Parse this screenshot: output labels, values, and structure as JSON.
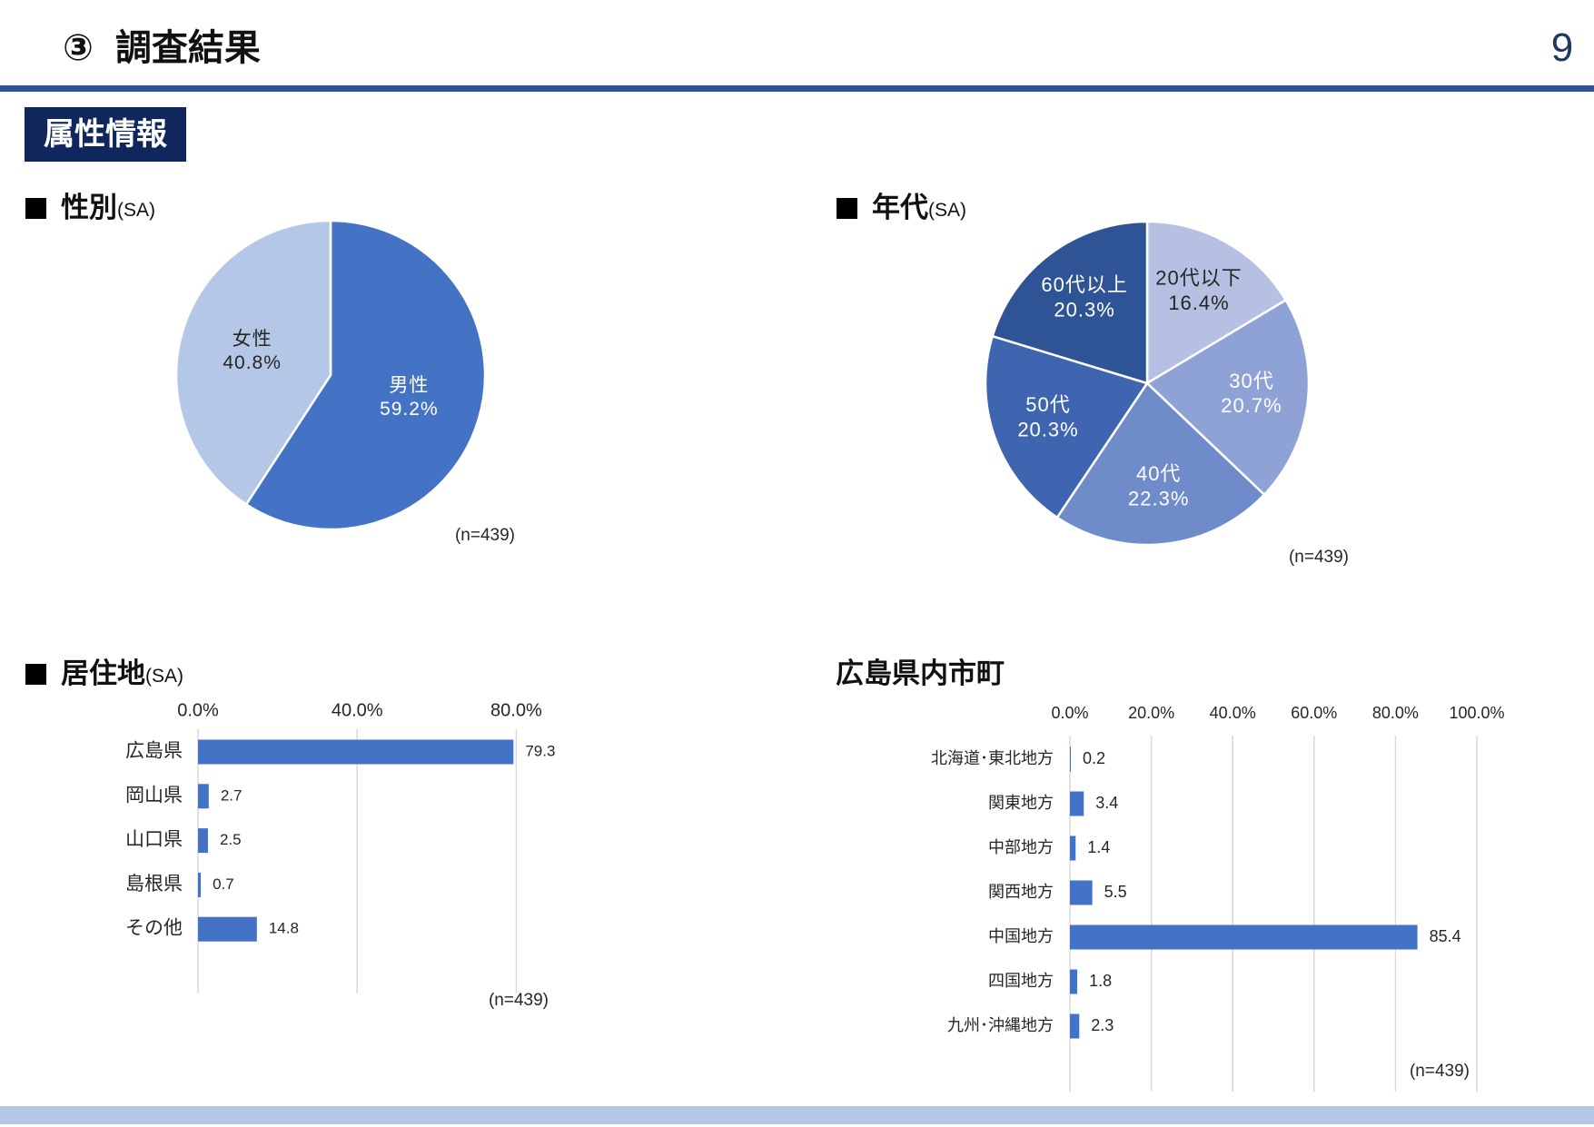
{
  "header": {
    "number": "③",
    "title": "調査結果",
    "page_number": "9"
  },
  "section_badge": "属性情報",
  "chart_data": [
    {
      "type": "pie",
      "title": "性別",
      "title_suffix": "(SA)",
      "note": "(n=439)",
      "slices": [
        {
          "label": "男性",
          "value": 59.2,
          "color": "#4472c4",
          "text_color": "#ffffff"
        },
        {
          "label": "女性",
          "value": 40.8,
          "color": "#b4c7e7",
          "text_color": "#262626"
        }
      ]
    },
    {
      "type": "pie",
      "title": "年代",
      "title_suffix": "(SA)",
      "note": "(n=439)",
      "slices": [
        {
          "label": "20代以下",
          "value": 16.4,
          "color": "#b6c0e3",
          "text_color": "#262626"
        },
        {
          "label": "30代",
          "value": 20.7,
          "color": "#8fa2d5",
          "text_color": "#ffffff"
        },
        {
          "label": "40代",
          "value": 22.3,
          "color": "#6f8bca",
          "text_color": "#ffffff"
        },
        {
          "label": "50代",
          "value": 20.3,
          "color": "#3f65b0",
          "text_color": "#ffffff"
        },
        {
          "label": "60代以上",
          "value": 20.3,
          "color": "#2f5496",
          "text_color": "#ffffff"
        }
      ]
    },
    {
      "type": "bar",
      "orientation": "horizontal",
      "title": "居住地",
      "title_suffix": "(SA)",
      "note": "(n=439)",
      "xlim": [
        0,
        80
      ],
      "x_ticks": [
        0,
        40,
        80
      ],
      "bar_color": "#4472c4",
      "grid": true,
      "categories": [
        "広島県",
        "岡山県",
        "山口県",
        "島根県",
        "その他"
      ],
      "values": [
        79.3,
        2.7,
        2.5,
        0.7,
        14.8
      ]
    },
    {
      "type": "bar",
      "orientation": "horizontal",
      "title": "広島県内市町",
      "note": "(n=439)",
      "xlim": [
        0,
        100
      ],
      "x_ticks": [
        0,
        20,
        40,
        60,
        80,
        100
      ],
      "bar_color": "#4472c4",
      "grid": true,
      "categories": [
        "北海道･東北地方",
        "関東地方",
        "中部地方",
        "関西地方",
        "中国地方",
        "四国地方",
        "九州･沖縄地方"
      ],
      "values": [
        0.2,
        3.4,
        1.4,
        5.5,
        85.4,
        1.8,
        2.3
      ]
    }
  ]
}
